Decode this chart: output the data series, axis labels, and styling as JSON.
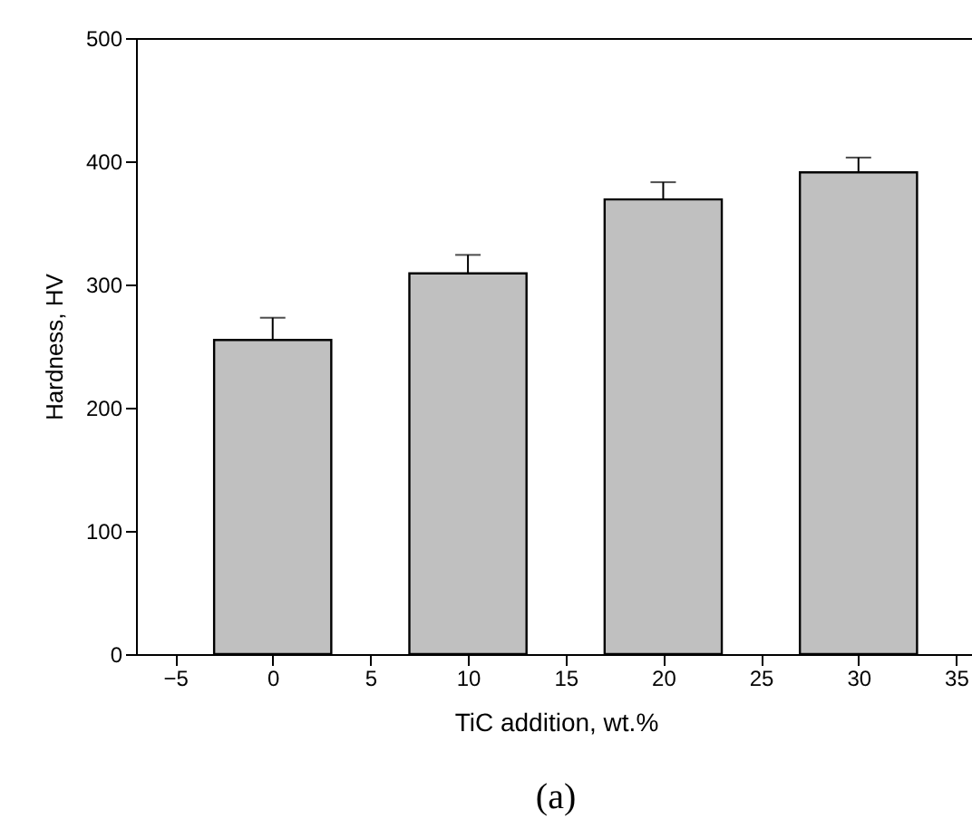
{
  "chart_data": {
    "type": "bar",
    "xlabel": "TiC addition, wt.%",
    "ylabel": "Hardness, HV",
    "x": [
      0,
      10,
      20,
      30
    ],
    "values": [
      255,
      309,
      369,
      391
    ],
    "errors": [
      [
        255,
        273
      ],
      [
        309,
        324
      ],
      [
        369,
        383
      ],
      [
        391,
        403
      ]
    ],
    "color": "#c0c0c0",
    "xlim": [
      -7,
      36
    ],
    "xticks": [
      -5,
      0,
      5,
      10,
      15,
      20,
      25,
      30,
      35
    ],
    "ylim": [
      0,
      500
    ],
    "yticks": [
      0,
      100,
      200,
      300,
      400,
      500
    ],
    "grid": false,
    "annotations": [
      "(a)"
    ]
  }
}
